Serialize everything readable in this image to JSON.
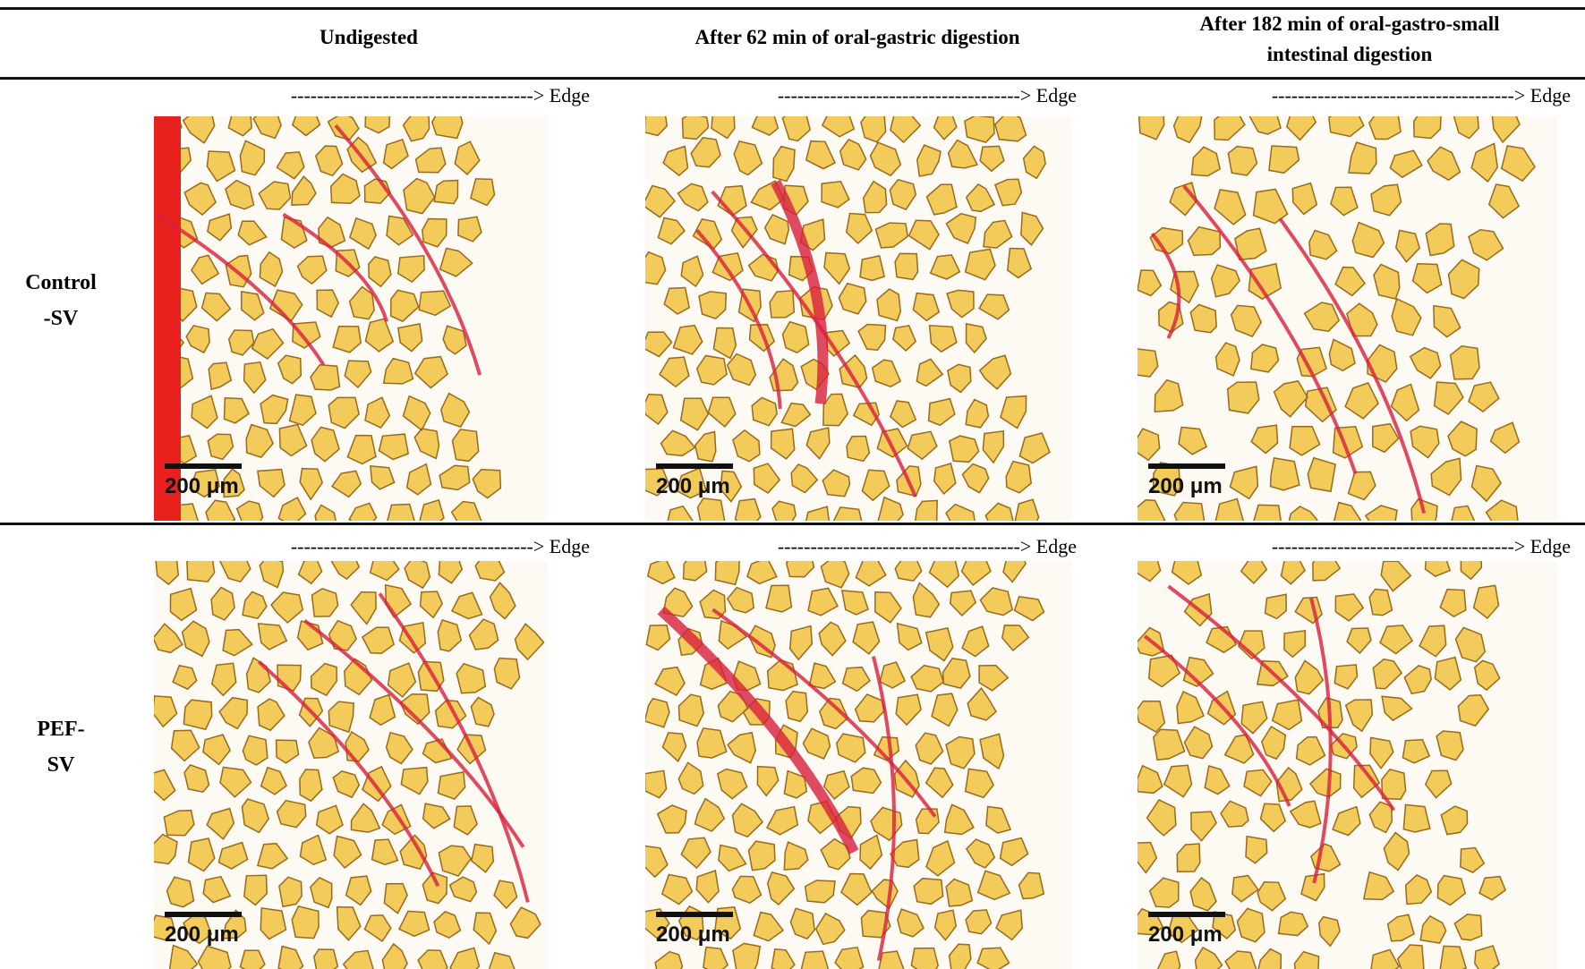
{
  "header": {
    "columns": [
      {
        "lines": [
          "Undigested"
        ]
      },
      {
        "lines": [
          "After 62 min of oral-gastric digestion"
        ]
      },
      {
        "lines": [
          "After 182 min of oral-gastro-small",
          "intestinal digestion"
        ]
      }
    ]
  },
  "rows": [
    {
      "label_lines": [
        "Control",
        "-SV"
      ],
      "panels": [
        {
          "edge_label": "-------------------------------------> Edge",
          "scale_label": "200 μm"
        },
        {
          "edge_label": "-------------------------------------> Edge",
          "scale_label": "200 μm"
        },
        {
          "edge_label": "-------------------------------------> Edge",
          "scale_label": "200 μm"
        }
      ]
    },
    {
      "label_lines": [
        "PEF-",
        "SV"
      ],
      "panels": [
        {
          "edge_label": "-------------------------------------> Edge",
          "scale_label": "200 μm"
        },
        {
          "edge_label": "-------------------------------------> Edge",
          "scale_label": "200 μm"
        },
        {
          "edge_label": "-------------------------------------> Edge",
          "scale_label": "200 μm"
        }
      ]
    }
  ]
}
